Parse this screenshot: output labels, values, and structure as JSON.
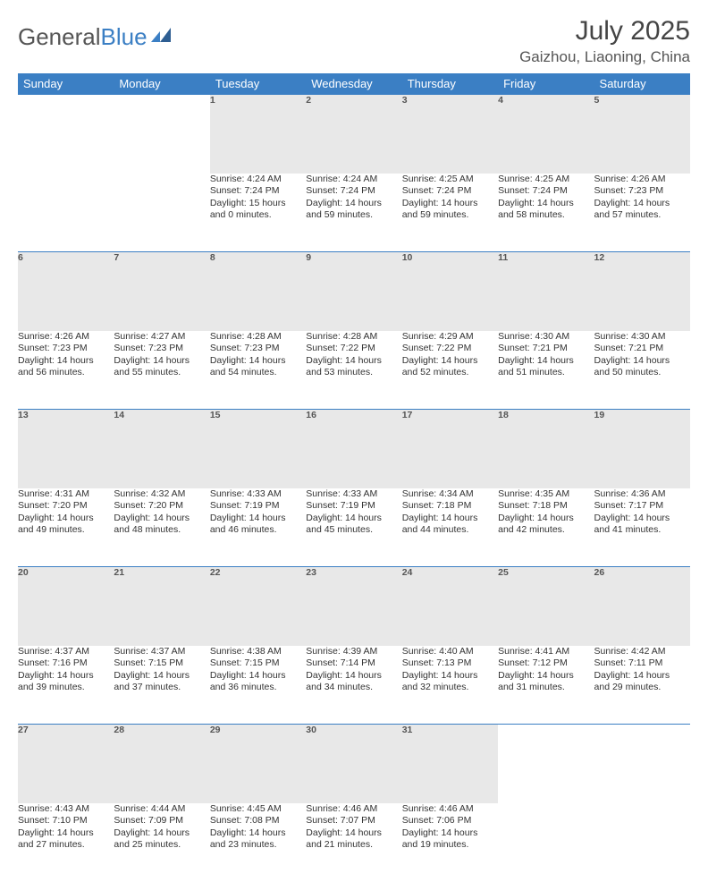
{
  "brand": {
    "general": "General",
    "blue": "Blue"
  },
  "colors": {
    "header_bg": "#3b7fc4",
    "header_text": "#ffffff",
    "daynum_bg": "#e8e8e8",
    "rule": "#3b7fc4",
    "text": "#333333",
    "muted": "#555555",
    "page_bg": "#ffffff"
  },
  "title": "July 2025",
  "location": "Gaizhou, Liaoning, China",
  "day_headers": [
    "Sunday",
    "Monday",
    "Tuesday",
    "Wednesday",
    "Thursday",
    "Friday",
    "Saturday"
  ],
  "weeks": [
    [
      null,
      null,
      {
        "n": "1",
        "sr": "Sunrise: 4:24 AM",
        "ss": "Sunset: 7:24 PM",
        "d1": "Daylight: 15 hours",
        "d2": "and 0 minutes."
      },
      {
        "n": "2",
        "sr": "Sunrise: 4:24 AM",
        "ss": "Sunset: 7:24 PM",
        "d1": "Daylight: 14 hours",
        "d2": "and 59 minutes."
      },
      {
        "n": "3",
        "sr": "Sunrise: 4:25 AM",
        "ss": "Sunset: 7:24 PM",
        "d1": "Daylight: 14 hours",
        "d2": "and 59 minutes."
      },
      {
        "n": "4",
        "sr": "Sunrise: 4:25 AM",
        "ss": "Sunset: 7:24 PM",
        "d1": "Daylight: 14 hours",
        "d2": "and 58 minutes."
      },
      {
        "n": "5",
        "sr": "Sunrise: 4:26 AM",
        "ss": "Sunset: 7:23 PM",
        "d1": "Daylight: 14 hours",
        "d2": "and 57 minutes."
      }
    ],
    [
      {
        "n": "6",
        "sr": "Sunrise: 4:26 AM",
        "ss": "Sunset: 7:23 PM",
        "d1": "Daylight: 14 hours",
        "d2": "and 56 minutes."
      },
      {
        "n": "7",
        "sr": "Sunrise: 4:27 AM",
        "ss": "Sunset: 7:23 PM",
        "d1": "Daylight: 14 hours",
        "d2": "and 55 minutes."
      },
      {
        "n": "8",
        "sr": "Sunrise: 4:28 AM",
        "ss": "Sunset: 7:23 PM",
        "d1": "Daylight: 14 hours",
        "d2": "and 54 minutes."
      },
      {
        "n": "9",
        "sr": "Sunrise: 4:28 AM",
        "ss": "Sunset: 7:22 PM",
        "d1": "Daylight: 14 hours",
        "d2": "and 53 minutes."
      },
      {
        "n": "10",
        "sr": "Sunrise: 4:29 AM",
        "ss": "Sunset: 7:22 PM",
        "d1": "Daylight: 14 hours",
        "d2": "and 52 minutes."
      },
      {
        "n": "11",
        "sr": "Sunrise: 4:30 AM",
        "ss": "Sunset: 7:21 PM",
        "d1": "Daylight: 14 hours",
        "d2": "and 51 minutes."
      },
      {
        "n": "12",
        "sr": "Sunrise: 4:30 AM",
        "ss": "Sunset: 7:21 PM",
        "d1": "Daylight: 14 hours",
        "d2": "and 50 minutes."
      }
    ],
    [
      {
        "n": "13",
        "sr": "Sunrise: 4:31 AM",
        "ss": "Sunset: 7:20 PM",
        "d1": "Daylight: 14 hours",
        "d2": "and 49 minutes."
      },
      {
        "n": "14",
        "sr": "Sunrise: 4:32 AM",
        "ss": "Sunset: 7:20 PM",
        "d1": "Daylight: 14 hours",
        "d2": "and 48 minutes."
      },
      {
        "n": "15",
        "sr": "Sunrise: 4:33 AM",
        "ss": "Sunset: 7:19 PM",
        "d1": "Daylight: 14 hours",
        "d2": "and 46 minutes."
      },
      {
        "n": "16",
        "sr": "Sunrise: 4:33 AM",
        "ss": "Sunset: 7:19 PM",
        "d1": "Daylight: 14 hours",
        "d2": "and 45 minutes."
      },
      {
        "n": "17",
        "sr": "Sunrise: 4:34 AM",
        "ss": "Sunset: 7:18 PM",
        "d1": "Daylight: 14 hours",
        "d2": "and 44 minutes."
      },
      {
        "n": "18",
        "sr": "Sunrise: 4:35 AM",
        "ss": "Sunset: 7:18 PM",
        "d1": "Daylight: 14 hours",
        "d2": "and 42 minutes."
      },
      {
        "n": "19",
        "sr": "Sunrise: 4:36 AM",
        "ss": "Sunset: 7:17 PM",
        "d1": "Daylight: 14 hours",
        "d2": "and 41 minutes."
      }
    ],
    [
      {
        "n": "20",
        "sr": "Sunrise: 4:37 AM",
        "ss": "Sunset: 7:16 PM",
        "d1": "Daylight: 14 hours",
        "d2": "and 39 minutes."
      },
      {
        "n": "21",
        "sr": "Sunrise: 4:37 AM",
        "ss": "Sunset: 7:15 PM",
        "d1": "Daylight: 14 hours",
        "d2": "and 37 minutes."
      },
      {
        "n": "22",
        "sr": "Sunrise: 4:38 AM",
        "ss": "Sunset: 7:15 PM",
        "d1": "Daylight: 14 hours",
        "d2": "and 36 minutes."
      },
      {
        "n": "23",
        "sr": "Sunrise: 4:39 AM",
        "ss": "Sunset: 7:14 PM",
        "d1": "Daylight: 14 hours",
        "d2": "and 34 minutes."
      },
      {
        "n": "24",
        "sr": "Sunrise: 4:40 AM",
        "ss": "Sunset: 7:13 PM",
        "d1": "Daylight: 14 hours",
        "d2": "and 32 minutes."
      },
      {
        "n": "25",
        "sr": "Sunrise: 4:41 AM",
        "ss": "Sunset: 7:12 PM",
        "d1": "Daylight: 14 hours",
        "d2": "and 31 minutes."
      },
      {
        "n": "26",
        "sr": "Sunrise: 4:42 AM",
        "ss": "Sunset: 7:11 PM",
        "d1": "Daylight: 14 hours",
        "d2": "and 29 minutes."
      }
    ],
    [
      {
        "n": "27",
        "sr": "Sunrise: 4:43 AM",
        "ss": "Sunset: 7:10 PM",
        "d1": "Daylight: 14 hours",
        "d2": "and 27 minutes."
      },
      {
        "n": "28",
        "sr": "Sunrise: 4:44 AM",
        "ss": "Sunset: 7:09 PM",
        "d1": "Daylight: 14 hours",
        "d2": "and 25 minutes."
      },
      {
        "n": "29",
        "sr": "Sunrise: 4:45 AM",
        "ss": "Sunset: 7:08 PM",
        "d1": "Daylight: 14 hours",
        "d2": "and 23 minutes."
      },
      {
        "n": "30",
        "sr": "Sunrise: 4:46 AM",
        "ss": "Sunset: 7:07 PM",
        "d1": "Daylight: 14 hours",
        "d2": "and 21 minutes."
      },
      {
        "n": "31",
        "sr": "Sunrise: 4:46 AM",
        "ss": "Sunset: 7:06 PM",
        "d1": "Daylight: 14 hours",
        "d2": "and 19 minutes."
      },
      null,
      null
    ]
  ]
}
